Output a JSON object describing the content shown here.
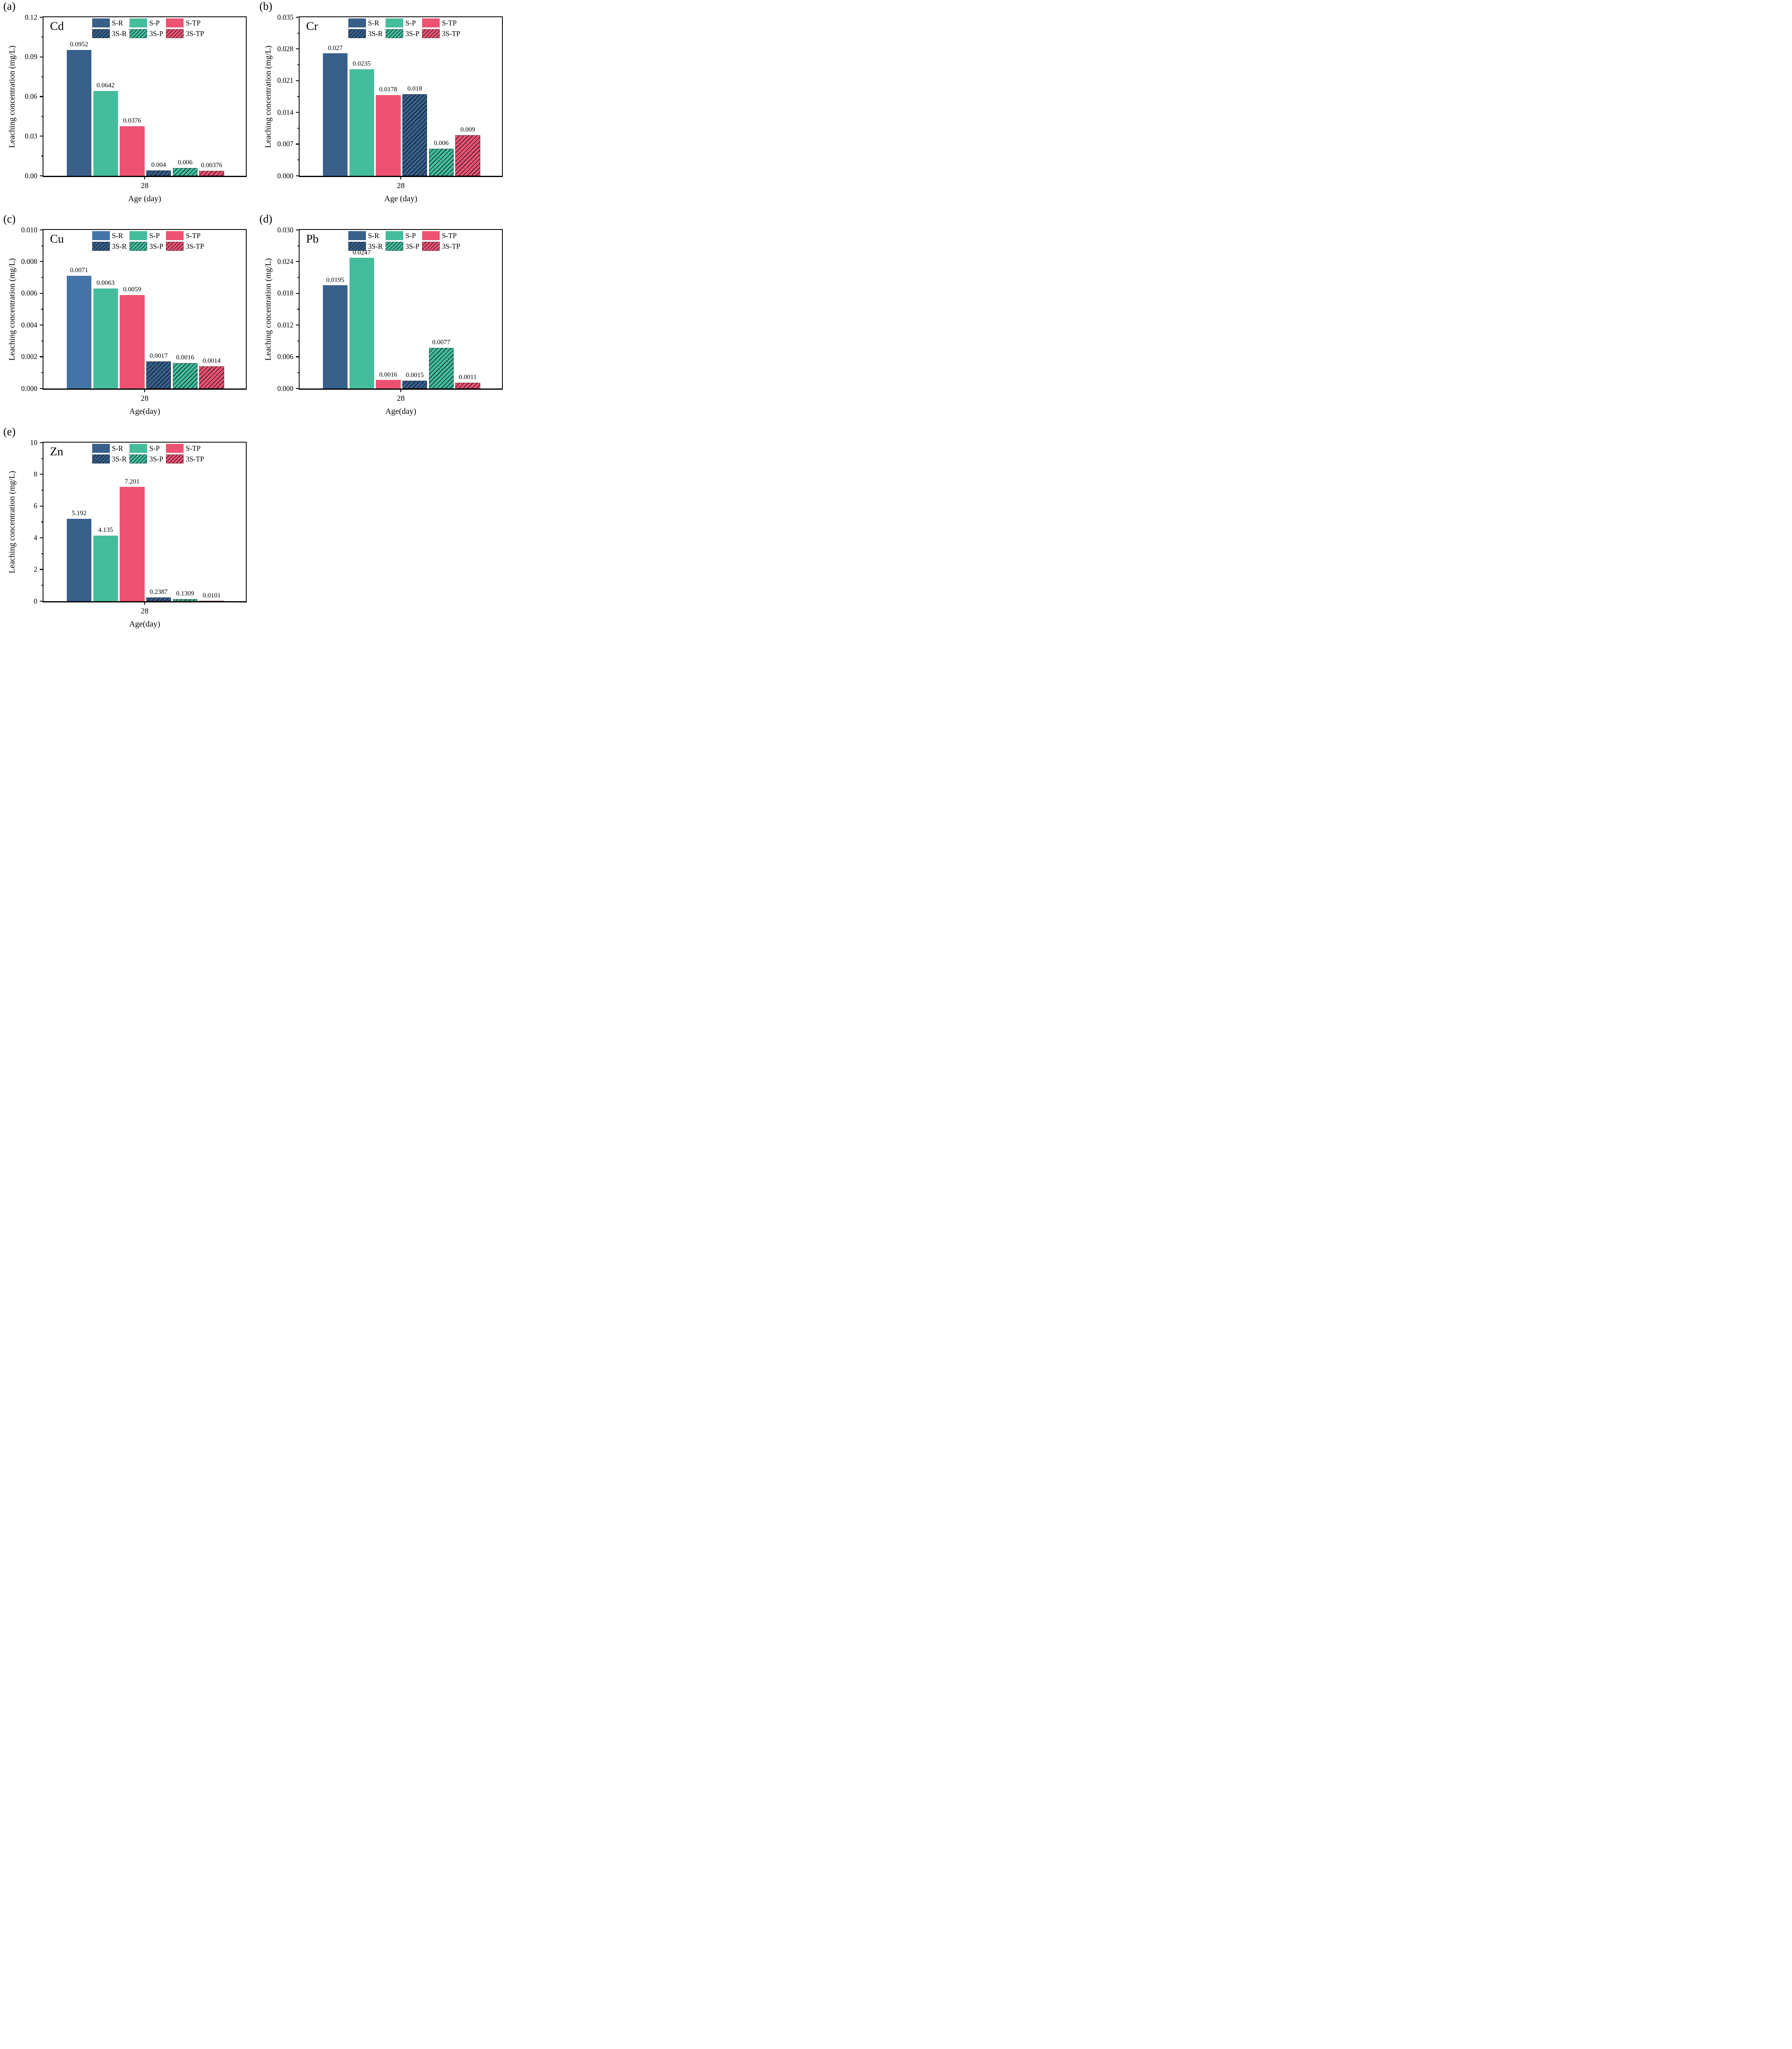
{
  "figure": {
    "description": "Leaching concentration of heavy metals (Cd, Cr, Cu, Pb, Zn) at 28 days",
    "background": "#ffffff"
  },
  "palette": {
    "navy": "#38608A",
    "blue": "#4473A6",
    "green": "#44BD9C",
    "pink": "#EE5272",
    "axis": "#000000"
  },
  "legend": {
    "row1": [
      "S-R",
      "S-P",
      "S-TP"
    ],
    "row2": [
      "3S-R",
      "3S-P",
      "3S-TP"
    ]
  },
  "chart_data": [
    {
      "id": "a",
      "type": "bar",
      "panel_label": "(a)",
      "title": "Cd",
      "ylabel": "Leaching concentration (mg/L)",
      "xlabel": "Age (day)",
      "x_group_label": "28",
      "ylim": [
        0,
        0.12
      ],
      "y_ticks": [
        "0.00",
        "0.03",
        "0.06",
        "0.09",
        "0.12"
      ],
      "legend_position": "top-inside",
      "grid": false,
      "series": [
        {
          "name": "S-R",
          "value": 0.0952,
          "label": "0.0952",
          "color": "#38608A",
          "hatched": false
        },
        {
          "name": "S-P",
          "value": 0.0642,
          "label": "0.0642",
          "color": "#44BD9C",
          "hatched": false
        },
        {
          "name": "S-TP",
          "value": 0.0376,
          "label": "0.0376",
          "color": "#EE5272",
          "hatched": false
        },
        {
          "name": "3S-R",
          "value": 0.004,
          "label": "0.004",
          "color": "#38608A",
          "hatched": true
        },
        {
          "name": "3S-P",
          "value": 0.006,
          "label": "0.006",
          "color": "#44BD9C",
          "hatched": true
        },
        {
          "name": "3S-TP",
          "value": 0.00376,
          "label": "0.00376",
          "color": "#EE5272",
          "hatched": true
        }
      ]
    },
    {
      "id": "b",
      "type": "bar",
      "panel_label": "(b)",
      "title": "Cr",
      "ylabel": "Leaching concentration (mg/L)",
      "xlabel": "Age (day)",
      "x_group_label": "28",
      "ylim": [
        0,
        0.035
      ],
      "y_ticks": [
        "0.000",
        "0.007",
        "0.014",
        "0.021",
        "0.028",
        "0.035"
      ],
      "legend_position": "top-inside",
      "grid": false,
      "series": [
        {
          "name": "S-R",
          "value": 0.027,
          "label": "0.027",
          "color": "#38608A",
          "hatched": false
        },
        {
          "name": "S-P",
          "value": 0.0235,
          "label": "0.0235",
          "color": "#44BD9C",
          "hatched": false
        },
        {
          "name": "S-TP",
          "value": 0.0178,
          "label": "0.0178",
          "color": "#EE5272",
          "hatched": false
        },
        {
          "name": "3S-R",
          "value": 0.018,
          "label": "0.018",
          "color": "#38608A",
          "hatched": true
        },
        {
          "name": "3S-P",
          "value": 0.006,
          "label": "0.006",
          "color": "#44BD9C",
          "hatched": true
        },
        {
          "name": "3S-TP",
          "value": 0.009,
          "label": "0.009",
          "color": "#EE5272",
          "hatched": true
        }
      ]
    },
    {
      "id": "c",
      "type": "bar",
      "panel_label": "(c)",
      "title": "Cu",
      "ylabel": "Leaching concentration (mg/L)",
      "xlabel": "Age(day)",
      "x_group_label": "28",
      "ylim": [
        0,
        0.01
      ],
      "y_ticks": [
        "0.000",
        "0.002",
        "0.004",
        "0.006",
        "0.008",
        "0.010"
      ],
      "legend_position": "top-inside",
      "grid": false,
      "series": [
        {
          "name": "S-R",
          "value": 0.0071,
          "label": "0.0071",
          "color": "#4473A6",
          "hatched": false
        },
        {
          "name": "S-P",
          "value": 0.0063,
          "label": "0.0063",
          "color": "#44BD9C",
          "hatched": false
        },
        {
          "name": "S-TP",
          "value": 0.0059,
          "label": "0.0059",
          "color": "#EE5272",
          "hatched": false
        },
        {
          "name": "3S-R",
          "value": 0.0017,
          "label": "0.0017",
          "color": "#38608A",
          "hatched": true
        },
        {
          "name": "3S-P",
          "value": 0.0016,
          "label": "0.0016",
          "color": "#44BD9C",
          "hatched": true
        },
        {
          "name": "3S-TP",
          "value": 0.0014,
          "label": "0.0014",
          "color": "#EE5272",
          "hatched": true
        }
      ]
    },
    {
      "id": "d",
      "type": "bar",
      "panel_label": "(d)",
      "title": "Pb",
      "ylabel": "Leaching concentration (mg/L)",
      "xlabel": "Age(day)",
      "x_group_label": "28",
      "ylim": [
        0,
        0.03
      ],
      "y_ticks": [
        "0.000",
        "0.006",
        "0.012",
        "0.018",
        "0.024",
        "0.030"
      ],
      "legend_position": "top-inside",
      "grid": false,
      "series": [
        {
          "name": "S-R",
          "value": 0.0195,
          "label": "0.0195",
          "color": "#38608A",
          "hatched": false
        },
        {
          "name": "S-P",
          "value": 0.0247,
          "label": "0.0247",
          "color": "#44BD9C",
          "hatched": false
        },
        {
          "name": "S-TP",
          "value": 0.0016,
          "label": "0.0016",
          "color": "#EE5272",
          "hatched": false
        },
        {
          "name": "3S-R",
          "value": 0.0015,
          "label": "0.0015",
          "color": "#38608A",
          "hatched": true
        },
        {
          "name": "3S-P",
          "value": 0.0077,
          "label": "0.0077",
          "color": "#44BD9C",
          "hatched": true
        },
        {
          "name": "3S-TP",
          "value": 0.0011,
          "label": "0.0011",
          "color": "#EE5272",
          "hatched": true
        }
      ]
    },
    {
      "id": "e",
      "type": "bar",
      "panel_label": "(e)",
      "title": "Zn",
      "ylabel": "Leaching concentration (mg/L)",
      "xlabel": "Age(day)",
      "x_group_label": "28",
      "ylim": [
        0,
        10
      ],
      "y_ticks": [
        "0",
        "2",
        "4",
        "6",
        "8",
        "10"
      ],
      "legend_position": "top-inside",
      "grid": false,
      "series": [
        {
          "name": "S-R",
          "value": 5.192,
          "label": "5.192",
          "color": "#38608A",
          "hatched": false
        },
        {
          "name": "S-P",
          "value": 4.135,
          "label": "4.135",
          "color": "#44BD9C",
          "hatched": false
        },
        {
          "name": "S-TP",
          "value": 7.201,
          "label": "7.201",
          "color": "#EE5272",
          "hatched": false
        },
        {
          "name": "3S-R",
          "value": 0.2387,
          "label": "0.2387",
          "color": "#38608A",
          "hatched": true
        },
        {
          "name": "3S-P",
          "value": 0.1309,
          "label": "0.1309",
          "color": "#44BD9C",
          "hatched": true
        },
        {
          "name": "3S-TP",
          "value": 0.0101,
          "label": "0.0101",
          "color": "#EE5272",
          "hatched": true
        }
      ]
    }
  ]
}
